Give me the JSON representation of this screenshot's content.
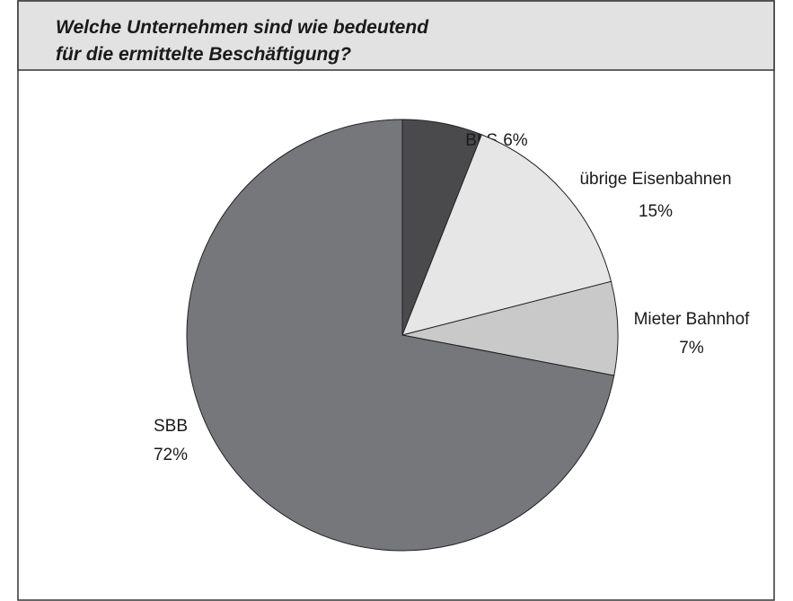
{
  "chart_data": {
    "type": "pie",
    "title": [
      "Welche Unternehmen sind wie bedeutend",
      "für die ermittelte Beschäftigung?"
    ],
    "categories": [
      "BLS",
      "übrige Eisenbahnen",
      "Mieter Bahnhof",
      "SBB"
    ],
    "values": [
      6,
      15,
      7,
      72
    ],
    "value_labels": [
      "6%",
      "15%",
      "7%",
      "72%"
    ],
    "colors": [
      "#4a4a4c",
      "#e6e6e6",
      "#c9c9c9",
      "#76777b"
    ]
  }
}
